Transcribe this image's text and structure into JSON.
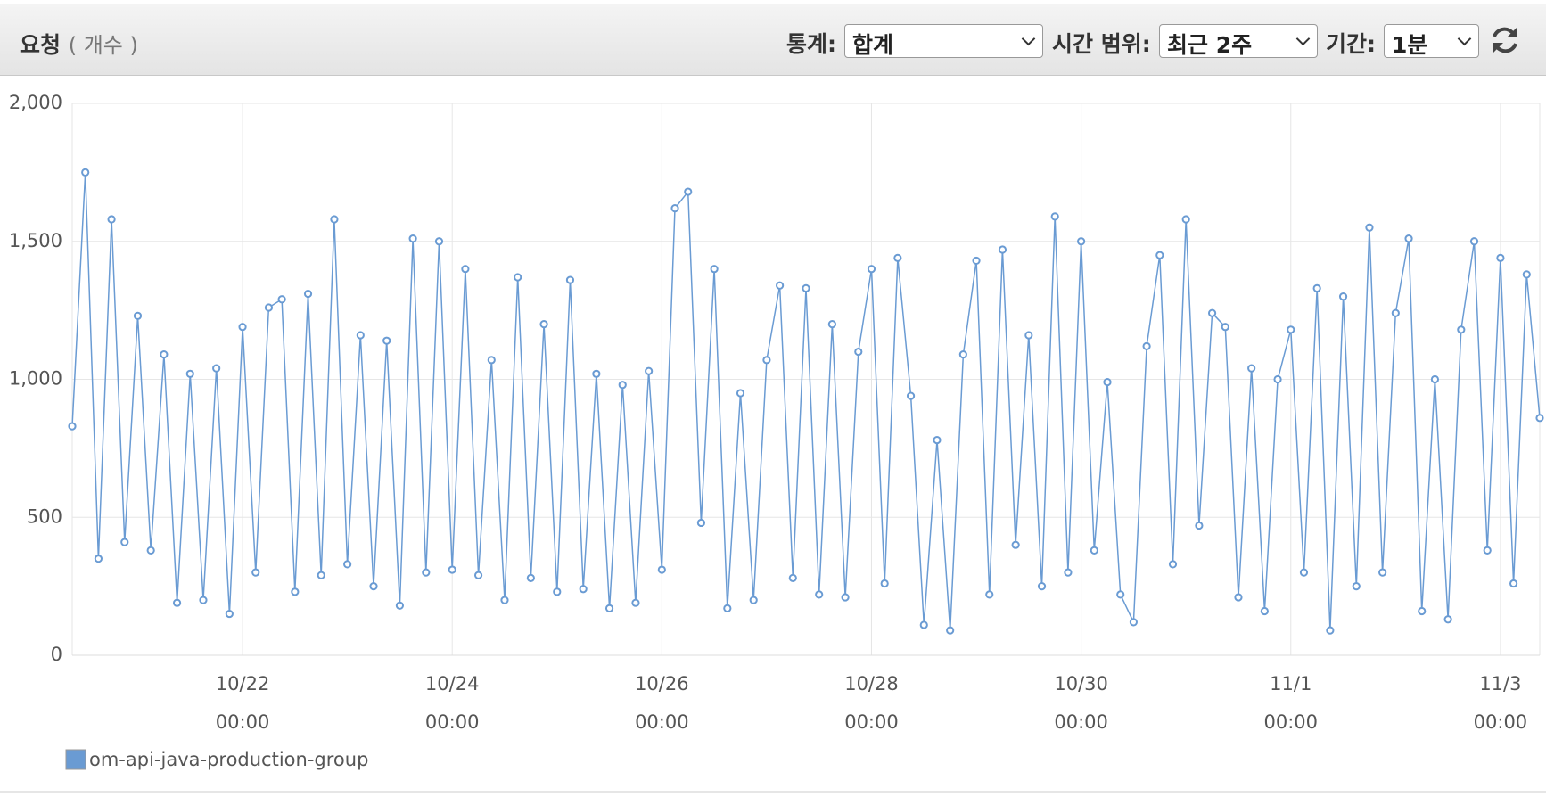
{
  "header": {
    "title": "요청",
    "unit": "( 개수 )",
    "controls": [
      {
        "label": "통계:",
        "value": "합계"
      },
      {
        "label": "시간 범위:",
        "value": "최근 2주"
      },
      {
        "label": "기간:",
        "value": "1분"
      }
    ]
  },
  "chart_data": {
    "type": "line",
    "grid": true,
    "xlim": [
      "10/20 09:00",
      "11/3 09:00"
    ],
    "ylim": [
      0,
      2000
    ],
    "yticks": [
      0,
      500,
      {
        "value": 1000,
        "label": "1,000"
      },
      {
        "value": 1500,
        "label": "1,500"
      },
      {
        "value": 2000,
        "label": "2,000"
      }
    ],
    "xticks": [
      {
        "value": "10/22 00:00",
        "label": [
          "10/22",
          "00:00"
        ]
      },
      {
        "value": "10/24 00:00",
        "label": [
          "10/24",
          "00:00"
        ]
      },
      {
        "value": "10/26 00:00",
        "label": [
          "10/26",
          "00:00"
        ]
      },
      {
        "value": "10/28 00:00",
        "label": [
          "10/28",
          "00:00"
        ]
      },
      {
        "value": "10/30 00:00",
        "label": [
          "10/30",
          "00:00"
        ]
      },
      {
        "value": "11/1 00:00",
        "label": [
          "11/1",
          "00:00"
        ]
      },
      {
        "value": "11/3 00:00",
        "label": [
          "11/3",
          "00:00"
        ]
      }
    ],
    "x": [
      "10/20 09:00",
      "10/20 12:00",
      "10/20 15:00",
      "10/20 18:00",
      "10/20 21:00",
      "10/21 00:00",
      "10/21 03:00",
      "10/21 06:00",
      "10/21 09:00",
      "10/21 12:00",
      "10/21 15:00",
      "10/21 18:00",
      "10/21 21:00",
      "10/22 00:00",
      "10/22 03:00",
      "10/22 06:00",
      "10/22 09:00",
      "10/22 12:00",
      "10/22 15:00",
      "10/22 18:00",
      "10/22 21:00",
      "10/23 00:00",
      "10/23 03:00",
      "10/23 06:00",
      "10/23 09:00",
      "10/23 12:00",
      "10/23 15:00",
      "10/23 18:00",
      "10/23 21:00",
      "10/24 00:00",
      "10/24 03:00",
      "10/24 06:00",
      "10/24 09:00",
      "10/24 12:00",
      "10/24 15:00",
      "10/24 18:00",
      "10/24 21:00",
      "10/25 00:00",
      "10/25 03:00",
      "10/25 06:00",
      "10/25 09:00",
      "10/25 12:00",
      "10/25 15:00",
      "10/25 18:00",
      "10/25 21:00",
      "10/26 00:00",
      "10/26 03:00",
      "10/26 06:00",
      "10/26 09:00",
      "10/26 12:00",
      "10/26 15:00",
      "10/26 18:00",
      "10/26 21:00",
      "10/27 00:00",
      "10/27 03:00",
      "10/27 06:00",
      "10/27 09:00",
      "10/27 12:00",
      "10/27 15:00",
      "10/27 18:00",
      "10/27 21:00",
      "10/28 00:00",
      "10/28 03:00",
      "10/28 06:00",
      "10/28 09:00",
      "10/28 12:00",
      "10/28 15:00",
      "10/28 18:00",
      "10/28 21:00",
      "10/29 00:00",
      "10/29 03:00",
      "10/29 06:00",
      "10/29 09:00",
      "10/29 12:00",
      "10/29 15:00",
      "10/29 18:00",
      "10/29 21:00",
      "10/30 00:00",
      "10/30 03:00",
      "10/30 06:00",
      "10/30 09:00",
      "10/30 12:00",
      "10/30 15:00",
      "10/30 18:00",
      "10/30 21:00",
      "10/31 00:00",
      "10/31 03:00",
      "10/31 06:00",
      "10/31 09:00",
      "10/31 12:00",
      "10/31 15:00",
      "10/31 18:00",
      "10/31 21:00",
      "11/1 00:00",
      "11/1 03:00",
      "11/1 06:00",
      "11/1 09:00",
      "11/1 12:00",
      "11/1 15:00",
      "11/1 18:00",
      "11/1 21:00",
      "11/2 00:00",
      "11/2 03:00",
      "11/2 06:00",
      "11/2 09:00",
      "11/2 12:00",
      "11/2 15:00",
      "11/2 18:00",
      "11/2 21:00",
      "11/3 00:00",
      "11/3 03:00",
      "11/3 06:00",
      "11/3 09:00"
    ],
    "series": [
      {
        "name": "om-api-java-production-group",
        "color": "#6a9bd3",
        "values": [
          830,
          1750,
          350,
          1580,
          410,
          1230,
          380,
          1090,
          190,
          1020,
          200,
          1040,
          150,
          1190,
          300,
          1260,
          1290,
          230,
          1310,
          290,
          1580,
          330,
          1160,
          250,
          1140,
          180,
          1510,
          300,
          1500,
          310,
          1400,
          290,
          1070,
          200,
          1370,
          280,
          1200,
          230,
          1360,
          240,
          1020,
          170,
          980,
          190,
          1030,
          310,
          1620,
          1680,
          480,
          1400,
          170,
          950,
          200,
          1070,
          1340,
          280,
          1330,
          220,
          1200,
          210,
          1100,
          1400,
          260,
          1440,
          940,
          110,
          780,
          90,
          1090,
          1430,
          220,
          1470,
          400,
          1160,
          250,
          1590,
          300,
          1500,
          380,
          990,
          220,
          120,
          1120,
          1450,
          330,
          1580,
          470,
          1240,
          1190,
          210,
          1040,
          160,
          1000,
          1180,
          300,
          1330,
          90,
          1300,
          250,
          1550,
          300,
          1240,
          1510,
          160,
          1000,
          130,
          1180,
          1500,
          380,
          1440,
          260,
          1380,
          860
        ]
      }
    ]
  }
}
